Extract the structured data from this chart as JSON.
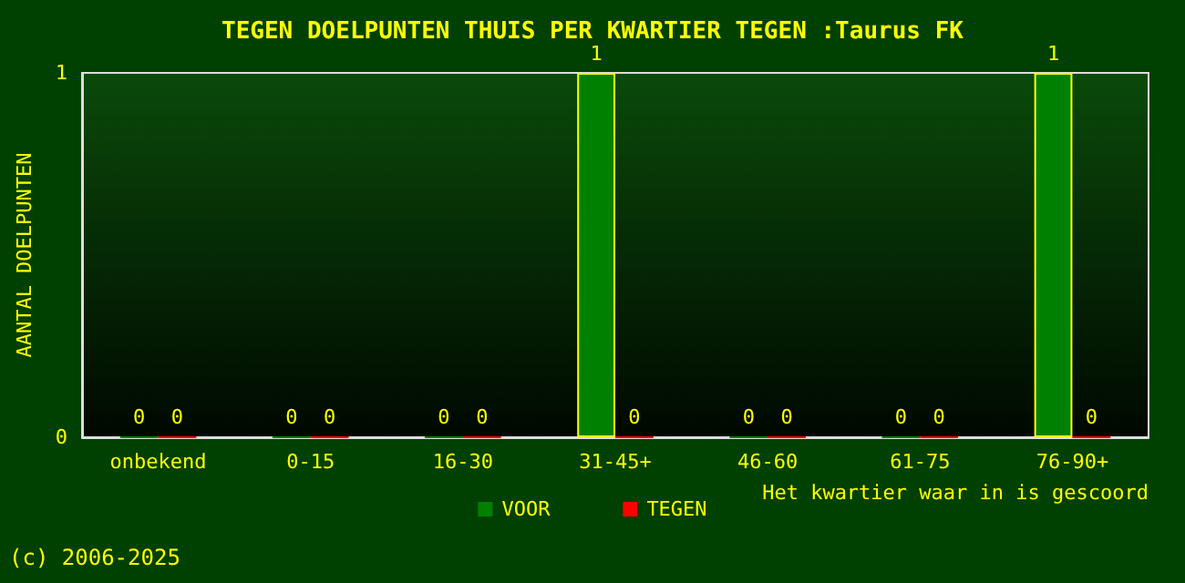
{
  "chart_data": {
    "type": "bar",
    "title": "TEGEN DOELPUNTEN THUIS PER KWARTIER TEGEN :Taurus FK",
    "xlabel": "Het kwartier waar in is gescoord",
    "ylabel": "AANTAL DOELPUNTEN",
    "categories": [
      "onbekend",
      "0-15",
      "16-30",
      "31-45+",
      "46-60",
      "61-75",
      "76-90+"
    ],
    "series": [
      {
        "name": "VOOR",
        "color": "#008000",
        "values": [
          0,
          0,
          0,
          1,
          0,
          0,
          1
        ]
      },
      {
        "name": "TEGEN",
        "color": "#ff0000",
        "values": [
          0,
          0,
          0,
          0,
          0,
          0,
          0
        ]
      }
    ],
    "ylim": [
      0,
      1
    ],
    "yticks": [
      0,
      1
    ],
    "grid": false,
    "legend": "bottom",
    "data_labels": true,
    "annotations": [
      "(c) 2006-2025"
    ]
  }
}
